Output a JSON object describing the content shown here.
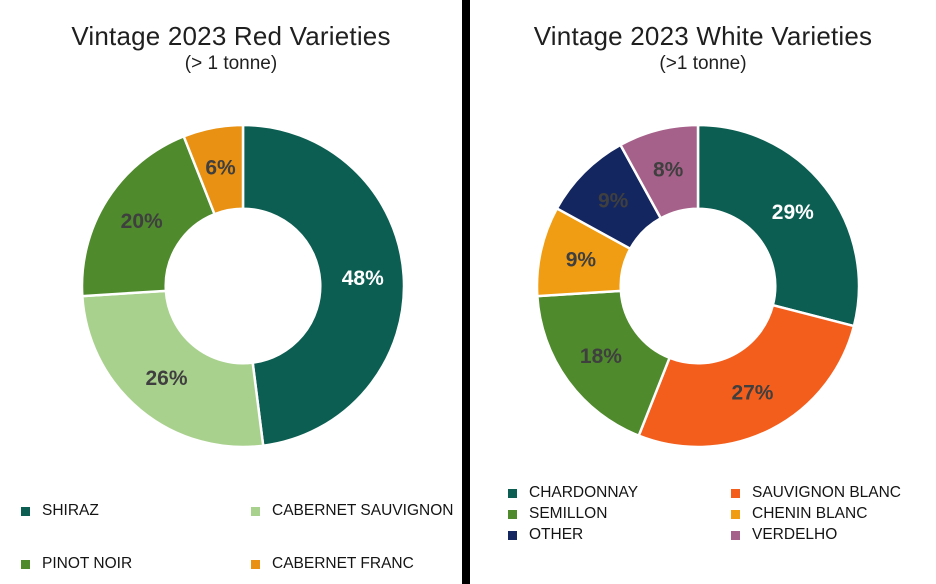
{
  "page": {
    "background": "#FFFFFF",
    "divider_color": "#000000"
  },
  "chart_data": [
    {
      "type": "pie",
      "subtype": "donut",
      "title": "Vintage 2023 Red Varieties",
      "subtitle": "(> 1 tonne)",
      "categories": [
        "SHIRAZ",
        "CABERNET SAUVIGNON",
        "PINOT NOIR",
        "CABERNET FRANC"
      ],
      "values": [
        48,
        26,
        20,
        6
      ],
      "data_labels": [
        "48%",
        "26%",
        "20%",
        "6%"
      ],
      "colors": [
        "#0B5E51",
        "#A9D18E",
        "#4F8A2C",
        "#E89112"
      ],
      "data_label_colors": [
        "#FFFFFF",
        "#3F3F3F",
        "#3F3F3F",
        "#3F3F3F"
      ],
      "start_angle_deg": 0,
      "direction": "clockwise",
      "hole_ratio": 0.48,
      "legend_position": "bottom",
      "legend": [
        {
          "label": "SHIRAZ",
          "color": "#0B5E51"
        },
        {
          "label": "CABERNET SAUVIGNON",
          "color": "#A9D18E"
        },
        {
          "label": "PINOT NOIR",
          "color": "#4F8A2C"
        },
        {
          "label": "CABERNET FRANC",
          "color": "#E89112"
        }
      ]
    },
    {
      "type": "pie",
      "subtype": "donut",
      "title": "Vintage 2023 White Varieties",
      "subtitle": "(>1 tonne)",
      "categories": [
        "CHARDONNAY",
        "SAUVIGNON BLANC",
        "SEMILLON",
        "CHENIN BLANC",
        "OTHER",
        "VERDELHO"
      ],
      "values": [
        29,
        27,
        18,
        9,
        9,
        8
      ],
      "data_labels": [
        "29%",
        "27%",
        "18%",
        "9%",
        "9%",
        "8%"
      ],
      "colors": [
        "#0B5E51",
        "#F45E1C",
        "#4F8A2C",
        "#F09D13",
        "#14265F",
        "#A6618A"
      ],
      "data_label_colors": [
        "#FFFFFF",
        "#3F3F3F",
        "#3F3F3F",
        "#3F3F3F",
        "#3F3F3F",
        "#3F3F3F"
      ],
      "start_angle_deg": 0,
      "direction": "clockwise",
      "hole_ratio": 0.48,
      "legend_position": "bottom",
      "legend": [
        {
          "label": "CHARDONNAY",
          "color": "#0B5E51"
        },
        {
          "label": "SEMILLON",
          "color": "#4F8A2C"
        },
        {
          "label": "OTHER",
          "color": "#14265F"
        },
        {
          "label": "SAUVIGNON BLANC",
          "color": "#F45E1C"
        },
        {
          "label": "CHENIN BLANC",
          "color": "#F09D13"
        },
        {
          "label": "VERDELHO",
          "color": "#A6618A"
        }
      ]
    }
  ]
}
